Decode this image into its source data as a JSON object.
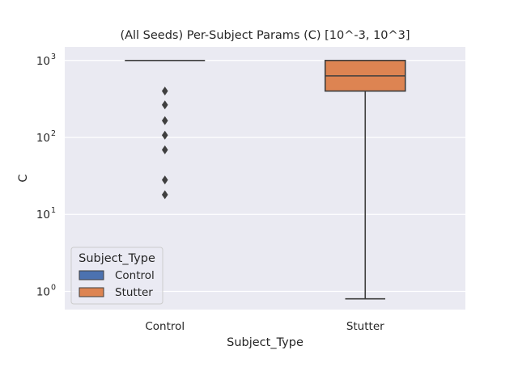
{
  "chart_data": {
    "type": "box",
    "title": "(All Seeds) Per-Subject Params (C) [10^-3, 10^3]",
    "xlabel": "Subject_Type",
    "ylabel": "C",
    "yscale": "log",
    "ylim": [
      0.58,
      1500
    ],
    "yticks": [
      {
        "value": 1,
        "base": "10",
        "exp": "0"
      },
      {
        "value": 10,
        "base": "10",
        "exp": "1"
      },
      {
        "value": 100,
        "base": "10",
        "exp": "2"
      },
      {
        "value": 1000,
        "base": "10",
        "exp": "3"
      }
    ],
    "grid": true,
    "categories": [
      "Control",
      "Stutter"
    ],
    "boxes": [
      {
        "category": "Control",
        "color": "#4c72b0",
        "whisker_low": 1000,
        "q1": 1000,
        "median": 1000,
        "q3": 1000,
        "whisker_high": 1000,
        "outliers": [
          400,
          265,
          165,
          107,
          69,
          28,
          18
        ]
      },
      {
        "category": "Stutter",
        "color": "#dd8452",
        "whisker_low": 0.8,
        "q1": 400,
        "median": 630,
        "q3": 1000,
        "whisker_high": 1000,
        "outliers": []
      }
    ],
    "legend": {
      "title": "Subject_Type",
      "position": "lower-left",
      "entries": [
        {
          "label": "Control",
          "color": "#4c72b0"
        },
        {
          "label": "Stutter",
          "color": "#dd8452"
        }
      ]
    }
  }
}
